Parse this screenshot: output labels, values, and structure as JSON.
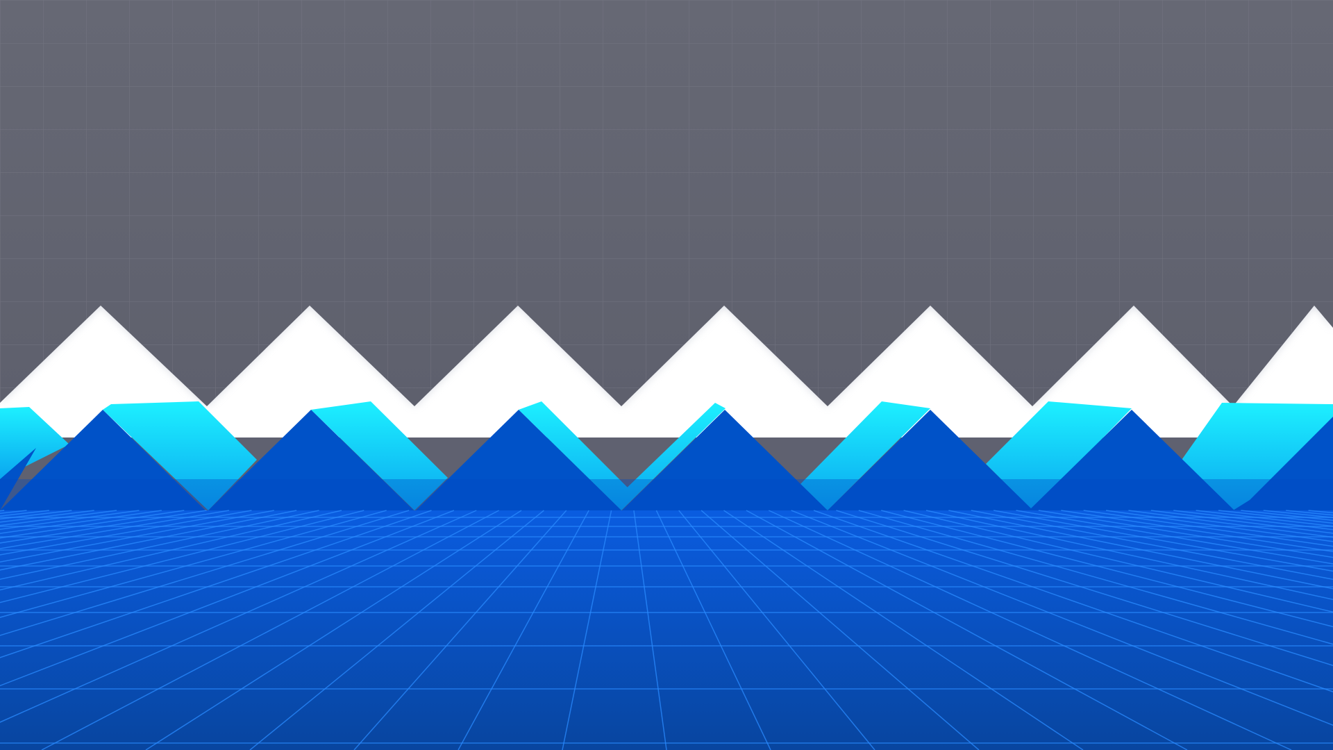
{
  "scene": {
    "name": "zigzag-corridor",
    "colors": {
      "ceiling": "#60626f",
      "ceiling_grid": "#7a7c88",
      "back_glow": "#ffffff",
      "wall_front": "#0052c8",
      "wall_top_face": "#18e6ff",
      "floor": "#0a4db5",
      "floor_grid": "#2a8bff"
    }
  }
}
